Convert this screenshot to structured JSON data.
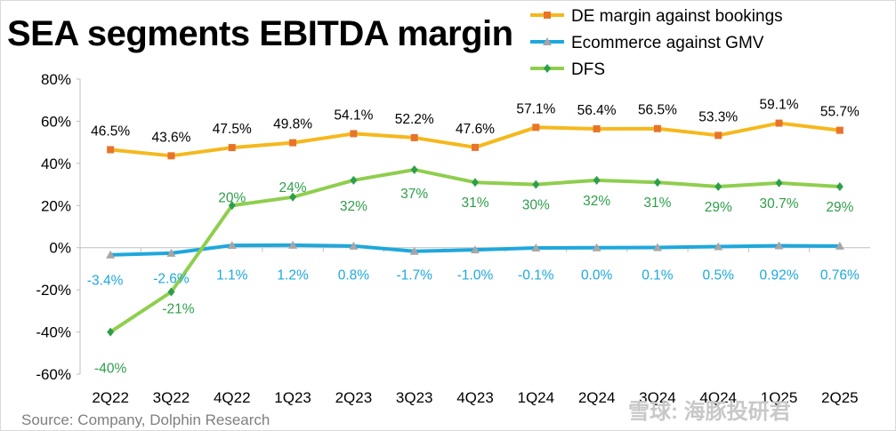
{
  "title": "SEA segments EBITDA margin",
  "source": "Source: Company, Dolphin Research",
  "watermark": "雪球: 海豚投研君",
  "chart_data": {
    "type": "line",
    "title": "SEA segments EBITDA margin",
    "categories": [
      "2Q22",
      "3Q22",
      "4Q22",
      "1Q23",
      "2Q23",
      "3Q23",
      "4Q23",
      "1Q24",
      "2Q24",
      "3Q24",
      "4Q24",
      "1Q25",
      "2Q25"
    ],
    "ylim": [
      -60,
      80
    ],
    "yticks": [
      "80%",
      "60%",
      "40%",
      "20%",
      "0%",
      "-20%",
      "-40%",
      "-60%"
    ],
    "ytick_values": [
      80,
      60,
      40,
      20,
      0,
      -20,
      -40,
      -60
    ],
    "grid": false,
    "legend_position": "top-right",
    "series": [
      {
        "name": "DE margin against bookings",
        "color": "#f5b81d",
        "marker": "square",
        "label_color": "#000000",
        "label_position": "above",
        "values": [
          46.5,
          43.6,
          47.5,
          49.8,
          54.1,
          52.2,
          47.6,
          57.1,
          56.4,
          56.5,
          53.3,
          59.1,
          55.7
        ],
        "labels": [
          "46.5%",
          "43.6%",
          "47.5%",
          "49.8%",
          "54.1%",
          "52.2%",
          "47.6%",
          "57.1%",
          "56.4%",
          "56.5%",
          "53.3%",
          "59.1%",
          "55.7%"
        ]
      },
      {
        "name": "Ecommerce against GMV",
        "color": "#1ea8dc",
        "marker": "triangle",
        "label_color": "#1ea8dc",
        "label_position": "below",
        "values": [
          -3.4,
          -2.6,
          1.1,
          1.2,
          0.8,
          -1.7,
          -1.0,
          -0.1,
          0.0,
          0.1,
          0.5,
          0.92,
          0.76
        ],
        "labels": [
          "-3.4%",
          "-2.6%",
          "1.1%",
          "1.2%",
          "0.8%",
          "-1.7%",
          "-1.0%",
          "-0.1%",
          "0.0%",
          "0.1%",
          "0.5%",
          "0.92%",
          "0.76%"
        ]
      },
      {
        "name": "DFS",
        "color": "#8fce4e",
        "marker": "diamond",
        "label_color": "#2e9e4a",
        "label_position": "below",
        "values": [
          -40,
          -21,
          20,
          24,
          32,
          37,
          31,
          30,
          32,
          31,
          29,
          30.7,
          29
        ],
        "labels": [
          "-40%",
          "-21%",
          "20%",
          "24%",
          "32%",
          "37%",
          "31%",
          "30%",
          "32%",
          "31%",
          "29%",
          "30.7%",
          "29%"
        ]
      }
    ]
  }
}
